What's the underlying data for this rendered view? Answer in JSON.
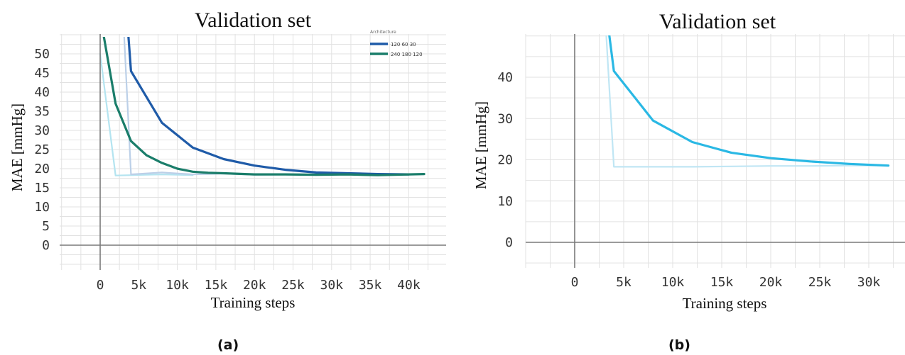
{
  "chart_data": [
    {
      "type": "line",
      "title": "Validation set",
      "xlabel": "Training steps",
      "ylabel": "MAE [mmHg]",
      "subfigure_label": "(a)",
      "xlim": [
        -5000,
        44000
      ],
      "ylim": [
        -5,
        55
      ],
      "x_ticks": [
        0,
        5000,
        10000,
        15000,
        20000,
        25000,
        30000,
        35000,
        40000
      ],
      "x_tick_labels": [
        "0",
        "5k",
        "10k",
        "15k",
        "20k",
        "25k",
        "30k",
        "35k",
        "40k"
      ],
      "y_ticks": [
        0,
        5,
        10,
        15,
        20,
        25,
        30,
        35,
        40,
        45,
        50
      ],
      "y_tick_labels": [
        "0",
        "5",
        "10",
        "15",
        "20",
        "25",
        "30",
        "35",
        "40",
        "45",
        "50"
      ],
      "grid": true,
      "legend": {
        "title": "Architecture",
        "placement": "top-right",
        "entries": [
          "120 60 30",
          "240 180 120"
        ]
      },
      "series": [
        {
          "name": "120 60 30",
          "color": "#1f5ba8",
          "x": [
            2000,
            4000,
            8000,
            12000,
            16000,
            20000,
            24000,
            28000,
            32000,
            36000,
            40000
          ],
          "y": [
            100,
            45.5,
            32,
            25.5,
            22.5,
            20.8,
            19.7,
            19.0,
            18.8,
            18.6,
            18.5
          ]
        },
        {
          "name": "240 180 120",
          "color": "#1a7d6a",
          "x": [
            0,
            2000,
            4000,
            6000,
            8000,
            10000,
            12000,
            14000,
            16000,
            20000,
            24000,
            28000,
            32000,
            36000,
            40000,
            42000
          ],
          "y": [
            60,
            37,
            27.2,
            23.5,
            21.5,
            20.0,
            19.2,
            18.9,
            18.8,
            18.5,
            18.5,
            18.4,
            18.5,
            18.3,
            18.5,
            18.6
          ]
        },
        {
          "color": "#b4e4f0",
          "faded": true,
          "x": [
            0,
            2000,
            4000,
            8000,
            12000
          ],
          "y": [
            50,
            18.2,
            18.3,
            18.5,
            18.3
          ]
        },
        {
          "color": "#bcd0e8",
          "faded": true,
          "x": [
            2000,
            4000,
            8000,
            12000,
            16000,
            20000,
            28000,
            36000,
            40000
          ],
          "y": [
            100,
            18.5,
            19.0,
            18.5,
            18.7,
            18.4,
            18.5,
            18.6,
            18.5
          ]
        }
      ]
    },
    {
      "type": "line",
      "title": "Validation set",
      "xlabel": "Training steps",
      "ylabel": "MAE [mmHg]",
      "subfigure_label": "(b)",
      "xlim": [
        -5000,
        34000
      ],
      "ylim": [
        -5,
        50
      ],
      "x_ticks": [
        0,
        5000,
        10000,
        15000,
        20000,
        25000,
        30000
      ],
      "x_tick_labels": [
        "0",
        "5k",
        "10k",
        "15k",
        "20k",
        "25k",
        "30k"
      ],
      "y_ticks": [
        0,
        10,
        20,
        30,
        40
      ],
      "y_tick_labels": [
        "0",
        "10",
        "20",
        "30",
        "40"
      ],
      "grid": true,
      "series": [
        {
          "color": "#2ab8e4",
          "x": [
            3000,
            4000,
            8000,
            12000,
            16000,
            20000,
            24000,
            28000,
            32000
          ],
          "y": [
            60,
            41.5,
            29.5,
            24.3,
            21.7,
            20.4,
            19.6,
            19.0,
            18.6
          ]
        },
        {
          "color": "#c0e6f4",
          "faded": true,
          "x": [
            2000,
            4000,
            8000,
            12000,
            16000,
            20000,
            24000,
            28000,
            32000
          ],
          "y": [
            100,
            18.3,
            18.3,
            18.3,
            18.4,
            18.5,
            18.5,
            18.6,
            18.6
          ]
        }
      ]
    }
  ]
}
